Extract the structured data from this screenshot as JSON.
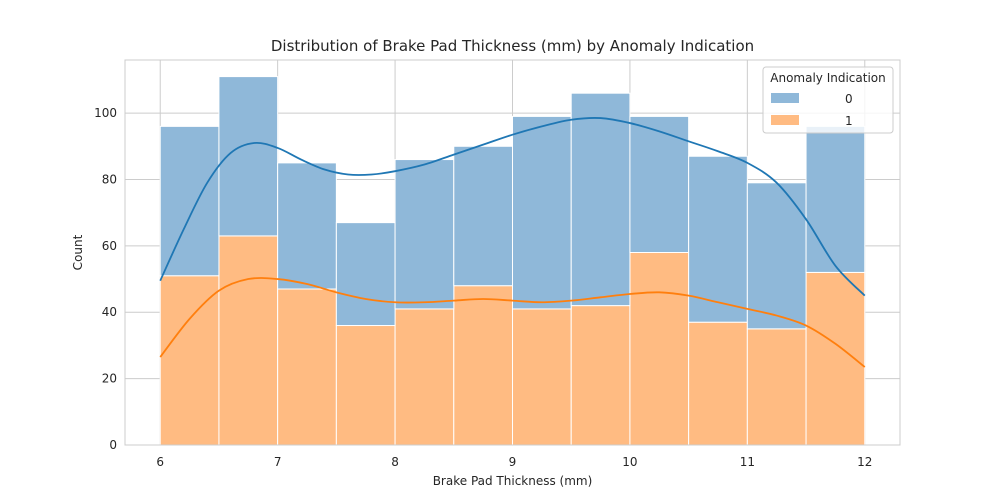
{
  "chart_data": {
    "type": "bar",
    "title": "Distribution of Brake Pad Thickness (mm) by Anomaly Indication",
    "xlabel": "Brake Pad Thickness (mm)",
    "ylabel": "Count",
    "xlim": [
      5.7,
      12.3
    ],
    "ylim": [
      0,
      116
    ],
    "xticks": [
      6,
      7,
      8,
      9,
      10,
      11,
      12
    ],
    "yticks": [
      0,
      20,
      40,
      60,
      80,
      100
    ],
    "grid": true,
    "stacked": true,
    "bin_edges": [
      6.0,
      6.5,
      7.0,
      7.5,
      8.0,
      8.5,
      9.0,
      9.5,
      10.0,
      10.5,
      11.0,
      11.5,
      12.0
    ],
    "legend": {
      "title": "Anomaly Indication",
      "placement": "top-right"
    },
    "series": [
      {
        "name": "1",
        "color": "#ff7f0e",
        "bar_color": "#ffbb82",
        "values": [
          51,
          63,
          47,
          36,
          41,
          48,
          41,
          42,
          58,
          37,
          35,
          52
        ],
        "kde": [
          [
            6.0,
            26.5
          ],
          [
            6.25,
            38
          ],
          [
            6.5,
            46.5
          ],
          [
            6.75,
            50
          ],
          [
            7.0,
            50
          ],
          [
            7.25,
            48.5
          ],
          [
            7.5,
            46
          ],
          [
            7.75,
            44
          ],
          [
            8.0,
            43
          ],
          [
            8.25,
            43
          ],
          [
            8.5,
            43.5
          ],
          [
            8.75,
            44
          ],
          [
            9.0,
            43.5
          ],
          [
            9.25,
            43
          ],
          [
            9.5,
            43.5
          ],
          [
            9.75,
            44.5
          ],
          [
            10.0,
            45.5
          ],
          [
            10.25,
            46
          ],
          [
            10.5,
            45
          ],
          [
            10.75,
            43
          ],
          [
            11.0,
            41
          ],
          [
            11.25,
            39
          ],
          [
            11.5,
            36
          ],
          [
            11.75,
            30.5
          ],
          [
            12.0,
            23.5
          ]
        ]
      },
      {
        "name": "0",
        "color": "#1f77b4",
        "bar_color": "#8fb8d9",
        "values": [
          45,
          48,
          38,
          31,
          45,
          42,
          58,
          64,
          41,
          50,
          44,
          44
        ],
        "kde": [
          [
            6.0,
            49.5
          ],
          [
            6.2,
            65
          ],
          [
            6.4,
            79
          ],
          [
            6.6,
            88
          ],
          [
            6.8,
            91
          ],
          [
            7.0,
            89.5
          ],
          [
            7.2,
            86
          ],
          [
            7.4,
            83
          ],
          [
            7.6,
            81.5
          ],
          [
            7.8,
            81.5
          ],
          [
            8.0,
            82.5
          ],
          [
            8.25,
            84.5
          ],
          [
            8.5,
            87.5
          ],
          [
            8.75,
            90.5
          ],
          [
            9.0,
            93.5
          ],
          [
            9.25,
            96
          ],
          [
            9.5,
            98
          ],
          [
            9.75,
            98.5
          ],
          [
            10.0,
            97
          ],
          [
            10.25,
            94.5
          ],
          [
            10.5,
            91.5
          ],
          [
            10.75,
            88.5
          ],
          [
            11.0,
            85
          ],
          [
            11.25,
            79
          ],
          [
            11.5,
            68
          ],
          [
            11.75,
            54
          ],
          [
            12.0,
            45
          ]
        ]
      }
    ]
  }
}
